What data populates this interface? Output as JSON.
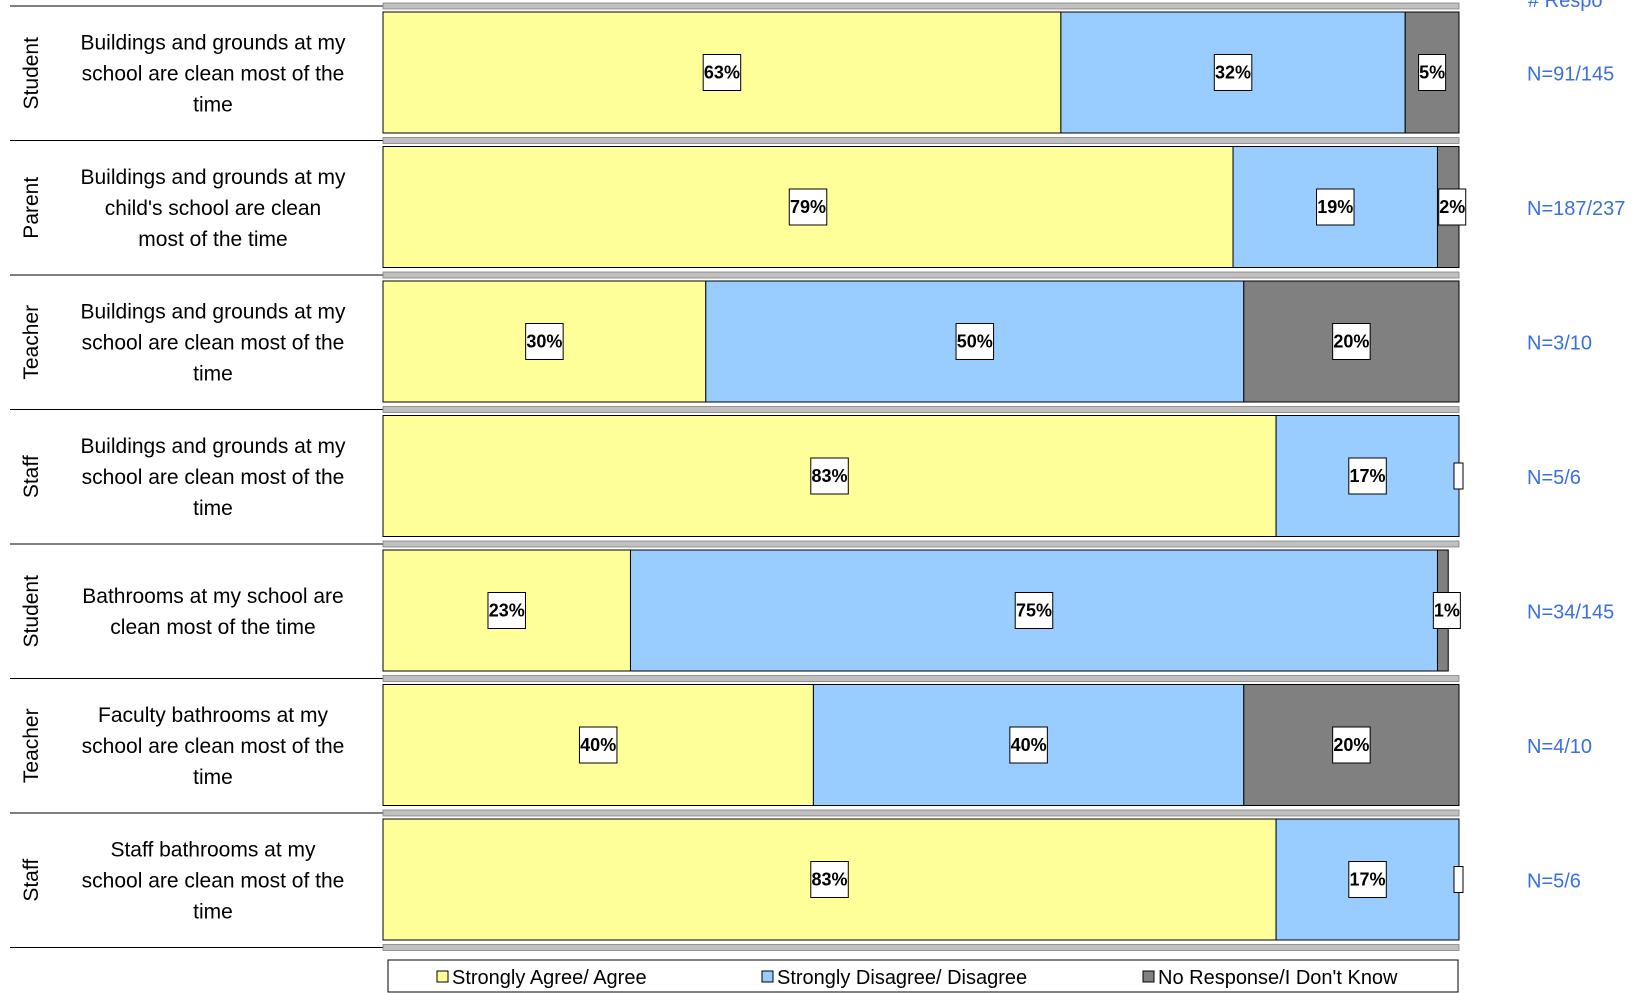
{
  "chart_data": {
    "type": "bar",
    "orientation": "horizontal",
    "stacked": true,
    "xlim": [
      0,
      100
    ],
    "header_partial": "# Respo",
    "legend": {
      "position": "bottom",
      "entries": [
        {
          "label": "Strongly Agree/ Agree",
          "color": "#ffff99"
        },
        {
          "label": "Strongly Disagree/ Disagree",
          "color": "#99ccff"
        },
        {
          "label": "No Response/I Don't Know",
          "color": "#808080"
        }
      ]
    },
    "rows": [
      {
        "role": "Student",
        "question": [
          "Buildings and grounds at my",
          "school are clean most of the",
          "time"
        ],
        "n": "N=91/145",
        "values": [
          63,
          32,
          5
        ],
        "labels": [
          "63%",
          "32%",
          "5%"
        ]
      },
      {
        "role": "Parent",
        "question": [
          "Buildings and grounds at my",
          "child's school are clean",
          "most of the time"
        ],
        "n": "N=187/237",
        "values": [
          79,
          19,
          2
        ],
        "labels": [
          "79%",
          "19%",
          "2%"
        ]
      },
      {
        "role": "Teacher",
        "question": [
          "Buildings and grounds at my",
          "school are clean most of the",
          "time"
        ],
        "n": "N=3/10",
        "values": [
          30,
          50,
          20
        ],
        "labels": [
          "30%",
          "50%",
          "20%"
        ]
      },
      {
        "role": "Staff",
        "question": [
          "Buildings and grounds at my",
          "school are clean most of the",
          "time"
        ],
        "n": "N=5/6",
        "values": [
          83,
          17,
          0
        ],
        "labels": [
          "83%",
          "17%",
          ""
        ]
      },
      {
        "role": "Student",
        "question": [
          "Bathrooms at my school are",
          "clean most of the time"
        ],
        "n": "N=34/145",
        "values": [
          23,
          75,
          1
        ],
        "labels": [
          "23%",
          "75%",
          "1%"
        ]
      },
      {
        "role": "Teacher",
        "question": [
          "Faculty bathrooms at my",
          "school are clean most of the",
          "time"
        ],
        "n": "N=4/10",
        "values": [
          40,
          40,
          20
        ],
        "labels": [
          "40%",
          "40%",
          "20%"
        ]
      },
      {
        "role": "Staff",
        "question": [
          "Staff bathrooms at my",
          "school are clean most of the",
          "time"
        ],
        "n": "N=5/6",
        "values": [
          83,
          17,
          0
        ],
        "labels": [
          "83%",
          "17%",
          ""
        ]
      }
    ]
  }
}
